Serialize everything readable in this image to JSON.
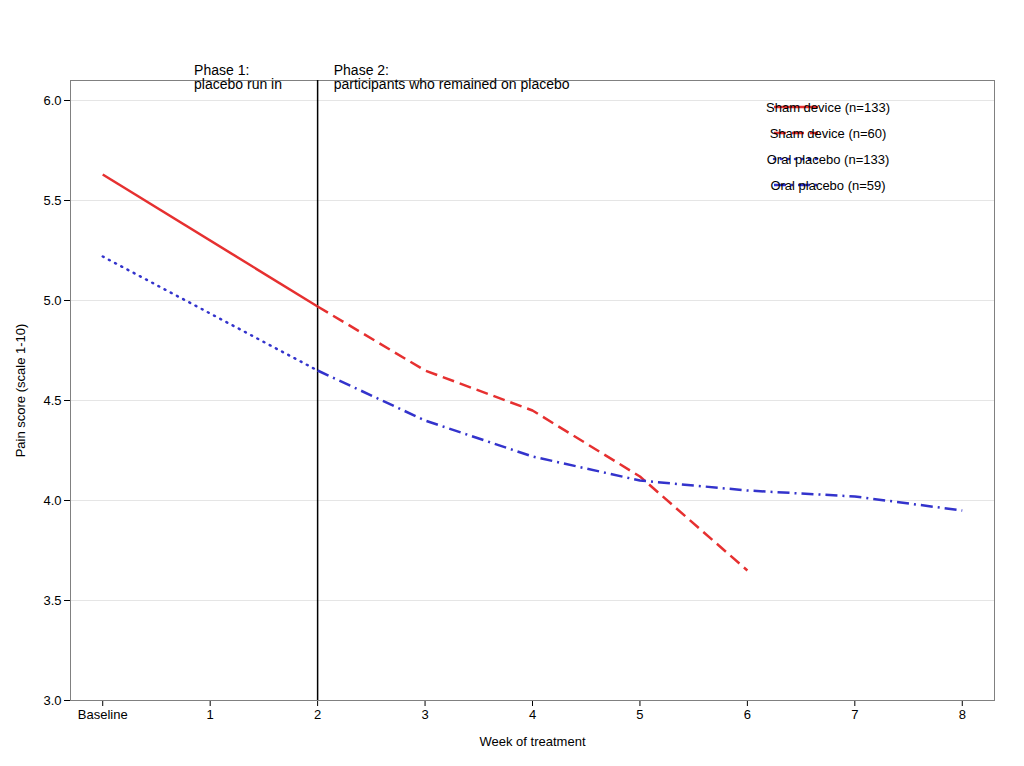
{
  "chart_data": {
    "type": "line",
    "xlabel": "Week of treatment",
    "ylabel": "Pain score (scale 1-10)",
    "xlim": [
      -0.3,
      8.3
    ],
    "xticks": [
      {
        "value": 0,
        "label": "Baseline"
      },
      1,
      2,
      3,
      4,
      5,
      6,
      7,
      8
    ],
    "ylim": [
      3.0,
      6.1
    ],
    "yticks": [
      {
        "value": 3.0,
        "label": "3.0"
      },
      3.5,
      {
        "value": 4.0,
        "label": "4.0"
      },
      4.5,
      {
        "value": 5.0,
        "label": "5.0"
      },
      5.5,
      {
        "value": 6.0,
        "label": "6.0"
      }
    ],
    "grid": "y",
    "legend": "upper right",
    "divider_x": 2,
    "annotations": [
      {
        "text": "Phase 1:\nplacebo run in",
        "x": 0.85,
        "y": 6.06
      },
      {
        "text": "Phase 2:\nparticipants who remained on placebo",
        "x": 2.15,
        "y": 6.06
      }
    ],
    "series": [
      {
        "name": "Sham device (n=133)",
        "color": "#e63030",
        "line_style": "solid",
        "x": [
          0,
          2
        ],
        "values": [
          5.63,
          4.97
        ]
      },
      {
        "name": "Sham device (n=60)",
        "color": "#e63030",
        "line_style": "dashed",
        "x": [
          2,
          3,
          4,
          5,
          6
        ],
        "values": [
          4.97,
          4.65,
          4.45,
          4.12,
          3.65
        ]
      },
      {
        "name": "Oral placebo (n=133)",
        "color": "#3333cc",
        "line_style": "dotted",
        "x": [
          0,
          2
        ],
        "values": [
          5.22,
          4.65
        ]
      },
      {
        "name": "Oral placebo (n=59)",
        "color": "#3333cc",
        "line_style": "dashdot",
        "x": [
          2,
          3,
          4,
          5,
          6,
          7,
          8
        ],
        "values": [
          4.65,
          4.4,
          4.22,
          4.1,
          4.05,
          4.02,
          3.95
        ]
      }
    ]
  }
}
